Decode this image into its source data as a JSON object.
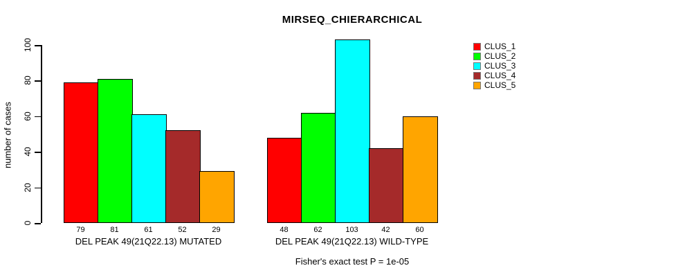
{
  "chart_data": {
    "type": "bar",
    "title": "MIRSEQ_CHIERARCHICAL",
    "ylabel": "number of cases",
    "xlabel": "",
    "footer": "Fisher's exact test P = 1e-05",
    "ylim": [
      0,
      100
    ],
    "yticks": [
      0,
      20,
      40,
      60,
      80,
      100
    ],
    "grid": false,
    "legend_position": "right",
    "series": [
      {
        "name": "CLUS_1",
        "color": "#ff0000",
        "values": [
          79,
          48
        ]
      },
      {
        "name": "CLUS_2",
        "color": "#00ff00",
        "values": [
          81,
          62
        ]
      },
      {
        "name": "CLUS_3",
        "color": "#00ffff",
        "values": [
          61,
          103
        ]
      },
      {
        "name": "CLUS_4",
        "color": "#a52a2a",
        "values": [
          52,
          42
        ]
      },
      {
        "name": "CLUS_5",
        "color": "#ffa500",
        "values": [
          29,
          60
        ]
      }
    ],
    "categories": [
      "DEL PEAK 49(21Q22.13) MUTATED",
      "DEL PEAK 49(21Q22.13) WILD-TYPE"
    ],
    "bar_value_labels": [
      [
        79,
        81,
        61,
        52,
        29
      ],
      [
        48,
        62,
        103,
        42,
        60
      ]
    ],
    "axis_color": "#000000",
    "background_color": "#ffffff"
  }
}
